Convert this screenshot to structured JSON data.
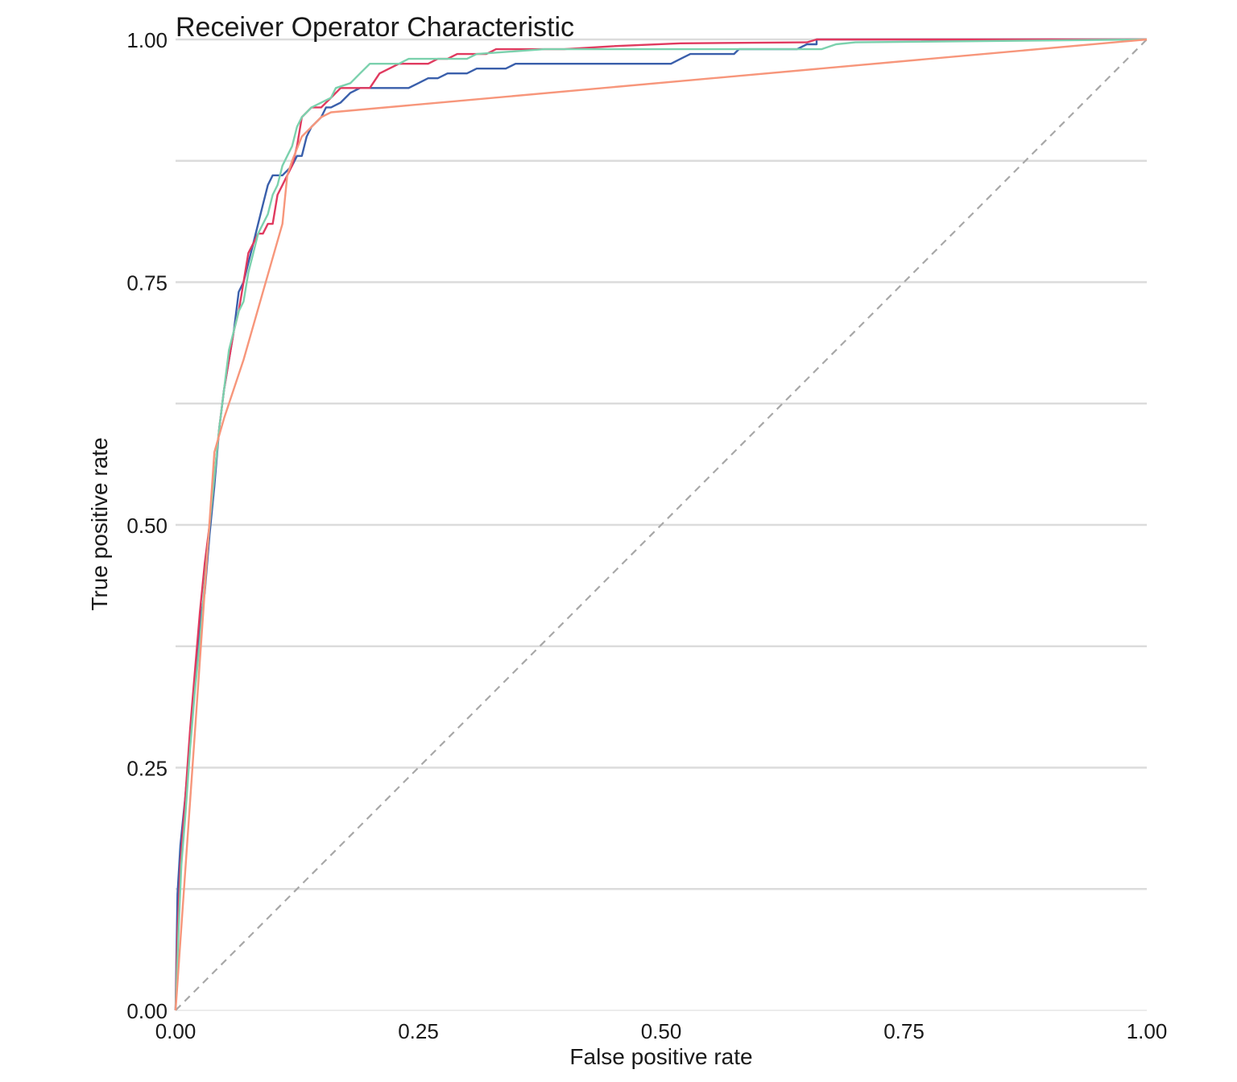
{
  "chart_data": {
    "type": "line",
    "title": "Receiver Operator Characteristic",
    "xlabel": "False positive rate",
    "ylabel": "True positive rate",
    "xlim": [
      0,
      1
    ],
    "ylim": [
      0,
      1
    ],
    "x_ticks": [
      "0.00",
      "0.25",
      "0.50",
      "0.75",
      "1.00"
    ],
    "y_ticks": [
      "0.00",
      "0.25",
      "0.50",
      "0.75",
      "1.00"
    ],
    "grid": "horizontal major and minor",
    "legend": "none",
    "reference_line": {
      "from": [
        0,
        0
      ],
      "to": [
        1,
        1
      ],
      "style": "dashed",
      "color": "#a8a8a8"
    },
    "series": [
      {
        "color": "#3a5fab",
        "points": [
          [
            0,
            0
          ],
          [
            0.002,
            0.12
          ],
          [
            0.005,
            0.17
          ],
          [
            0.01,
            0.22
          ],
          [
            0.015,
            0.28
          ],
          [
            0.02,
            0.34
          ],
          [
            0.025,
            0.4
          ],
          [
            0.03,
            0.43
          ],
          [
            0.035,
            0.49
          ],
          [
            0.04,
            0.54
          ],
          [
            0.045,
            0.6
          ],
          [
            0.05,
            0.64
          ],
          [
            0.055,
            0.67
          ],
          [
            0.06,
            0.7
          ],
          [
            0.065,
            0.74
          ],
          [
            0.07,
            0.75
          ],
          [
            0.075,
            0.77
          ],
          [
            0.08,
            0.79
          ],
          [
            0.085,
            0.81
          ],
          [
            0.09,
            0.83
          ],
          [
            0.095,
            0.85
          ],
          [
            0.1,
            0.86
          ],
          [
            0.11,
            0.86
          ],
          [
            0.12,
            0.87
          ],
          [
            0.125,
            0.88
          ],
          [
            0.13,
            0.88
          ],
          [
            0.135,
            0.9
          ],
          [
            0.14,
            0.91
          ],
          [
            0.15,
            0.92
          ],
          [
            0.155,
            0.93
          ],
          [
            0.16,
            0.93
          ],
          [
            0.17,
            0.935
          ],
          [
            0.18,
            0.945
          ],
          [
            0.19,
            0.95
          ],
          [
            0.24,
            0.95
          ],
          [
            0.25,
            0.955
          ],
          [
            0.26,
            0.96
          ],
          [
            0.27,
            0.96
          ],
          [
            0.28,
            0.965
          ],
          [
            0.3,
            0.965
          ],
          [
            0.31,
            0.97
          ],
          [
            0.34,
            0.97
          ],
          [
            0.35,
            0.975
          ],
          [
            0.4,
            0.975
          ],
          [
            0.45,
            0.975
          ],
          [
            0.51,
            0.975
          ],
          [
            0.52,
            0.98
          ],
          [
            0.53,
            0.985
          ],
          [
            0.55,
            0.985
          ],
          [
            0.575,
            0.985
          ],
          [
            0.58,
            0.99
          ],
          [
            0.64,
            0.99
          ],
          [
            0.65,
            0.995
          ],
          [
            0.66,
            0.995
          ],
          [
            0.66,
            1.0
          ],
          [
            1.0,
            1.0
          ]
        ]
      },
      {
        "color": "#e03a5f",
        "points": [
          [
            0,
            0
          ],
          [
            0.002,
            0.08
          ],
          [
            0.005,
            0.15
          ],
          [
            0.01,
            0.22
          ],
          [
            0.015,
            0.29
          ],
          [
            0.02,
            0.35
          ],
          [
            0.025,
            0.41
          ],
          [
            0.03,
            0.46
          ],
          [
            0.035,
            0.5
          ],
          [
            0.04,
            0.55
          ],
          [
            0.045,
            0.6
          ],
          [
            0.05,
            0.64
          ],
          [
            0.055,
            0.67
          ],
          [
            0.06,
            0.7
          ],
          [
            0.065,
            0.72
          ],
          [
            0.07,
            0.75
          ],
          [
            0.075,
            0.78
          ],
          [
            0.08,
            0.79
          ],
          [
            0.085,
            0.8
          ],
          [
            0.09,
            0.8
          ],
          [
            0.095,
            0.81
          ],
          [
            0.1,
            0.81
          ],
          [
            0.105,
            0.84
          ],
          [
            0.11,
            0.85
          ],
          [
            0.115,
            0.86
          ],
          [
            0.12,
            0.87
          ],
          [
            0.125,
            0.89
          ],
          [
            0.13,
            0.92
          ],
          [
            0.14,
            0.93
          ],
          [
            0.15,
            0.93
          ],
          [
            0.155,
            0.935
          ],
          [
            0.16,
            0.94
          ],
          [
            0.17,
            0.95
          ],
          [
            0.2,
            0.95
          ],
          [
            0.21,
            0.965
          ],
          [
            0.22,
            0.97
          ],
          [
            0.23,
            0.975
          ],
          [
            0.26,
            0.975
          ],
          [
            0.27,
            0.98
          ],
          [
            0.28,
            0.98
          ],
          [
            0.29,
            0.985
          ],
          [
            0.32,
            0.985
          ],
          [
            0.33,
            0.99
          ],
          [
            0.4,
            0.99
          ],
          [
            0.45,
            0.993
          ],
          [
            0.52,
            0.996
          ],
          [
            0.65,
            0.997
          ],
          [
            0.66,
            1.0
          ],
          [
            1.0,
            1.0
          ]
        ]
      },
      {
        "color": "#7bd1ad",
        "points": [
          [
            0,
            0
          ],
          [
            0.003,
            0.08
          ],
          [
            0.006,
            0.15
          ],
          [
            0.01,
            0.2
          ],
          [
            0.015,
            0.27
          ],
          [
            0.02,
            0.33
          ],
          [
            0.025,
            0.38
          ],
          [
            0.03,
            0.44
          ],
          [
            0.035,
            0.5
          ],
          [
            0.04,
            0.55
          ],
          [
            0.045,
            0.6
          ],
          [
            0.05,
            0.64
          ],
          [
            0.055,
            0.68
          ],
          [
            0.06,
            0.7
          ],
          [
            0.065,
            0.72
          ],
          [
            0.07,
            0.73
          ],
          [
            0.075,
            0.76
          ],
          [
            0.08,
            0.78
          ],
          [
            0.085,
            0.8
          ],
          [
            0.09,
            0.81
          ],
          [
            0.095,
            0.82
          ],
          [
            0.1,
            0.84
          ],
          [
            0.105,
            0.85
          ],
          [
            0.11,
            0.87
          ],
          [
            0.115,
            0.88
          ],
          [
            0.12,
            0.89
          ],
          [
            0.125,
            0.91
          ],
          [
            0.13,
            0.92
          ],
          [
            0.14,
            0.93
          ],
          [
            0.15,
            0.935
          ],
          [
            0.16,
            0.94
          ],
          [
            0.165,
            0.95
          ],
          [
            0.18,
            0.955
          ],
          [
            0.19,
            0.965
          ],
          [
            0.2,
            0.975
          ],
          [
            0.23,
            0.975
          ],
          [
            0.24,
            0.98
          ],
          [
            0.3,
            0.98
          ],
          [
            0.31,
            0.985
          ],
          [
            0.38,
            0.99
          ],
          [
            0.5,
            0.99
          ],
          [
            0.55,
            0.99
          ],
          [
            0.6,
            0.99
          ],
          [
            0.62,
            0.99
          ],
          [
            0.665,
            0.99
          ],
          [
            0.68,
            0.995
          ],
          [
            0.7,
            0.997
          ],
          [
            1.0,
            1.0
          ]
        ]
      },
      {
        "color": "#f7967b",
        "points": [
          [
            0,
            0
          ],
          [
            0.04,
            0.575
          ],
          [
            0.05,
            0.61
          ],
          [
            0.07,
            0.67
          ],
          [
            0.09,
            0.74
          ],
          [
            0.11,
            0.81
          ],
          [
            0.115,
            0.86
          ],
          [
            0.12,
            0.875
          ],
          [
            0.13,
            0.9
          ],
          [
            0.15,
            0.92
          ],
          [
            0.16,
            0.925
          ],
          [
            1.0,
            1.0
          ]
        ]
      }
    ]
  }
}
